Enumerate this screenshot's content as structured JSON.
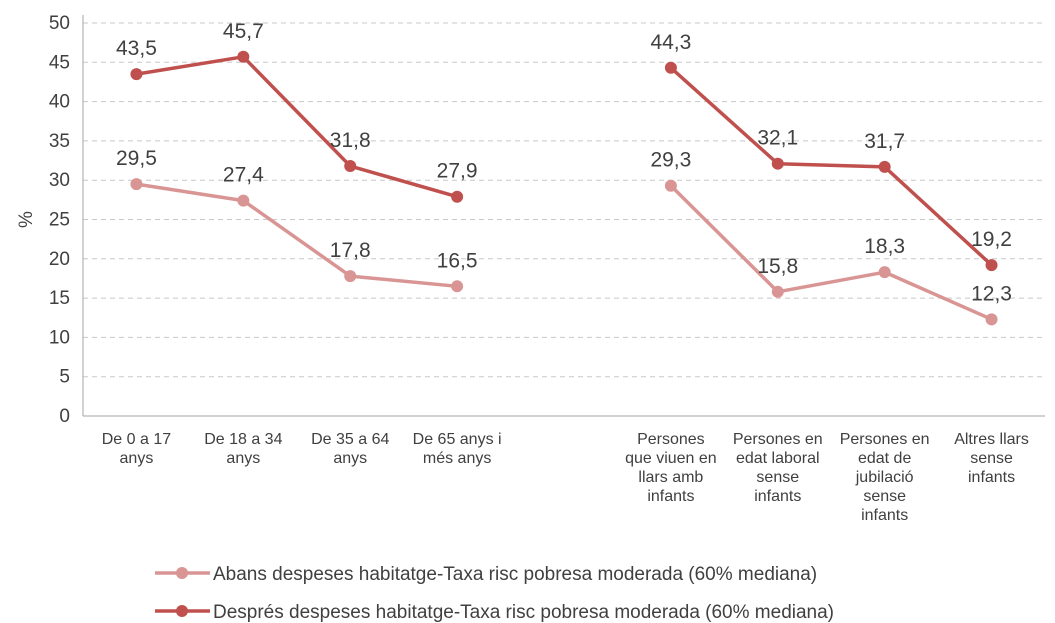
{
  "chart_data": {
    "type": "line",
    "ylabel": "%",
    "xlabel": "",
    "ylim": [
      0,
      50
    ],
    "yticks": [
      0,
      5,
      10,
      15,
      20,
      25,
      30,
      35,
      40,
      45,
      50
    ],
    "grid": "horizontal-dashed",
    "legend_position": "bottom",
    "categories": [
      {
        "label": [
          "De 0 a 17",
          "anys"
        ]
      },
      {
        "label": [
          "De 18 a 34",
          "anys"
        ]
      },
      {
        "label": [
          "De 35 a 64",
          "anys"
        ]
      },
      {
        "label": [
          "De 65 anys i",
          "més anys"
        ]
      },
      {
        "label": []
      },
      {
        "label": [
          "Persones",
          "que viuen en",
          "llars amb",
          "infants"
        ]
      },
      {
        "label": [
          "Persones en",
          "edat laboral",
          "sense",
          "infants"
        ]
      },
      {
        "label": [
          "Persones en",
          "edat de",
          "jubilació",
          "sense",
          "infants"
        ]
      },
      {
        "label": [
          "Altres llars",
          "sense",
          "infants"
        ]
      }
    ],
    "series": [
      {
        "name": "Abans despeses habitatge-Taxa risc pobresa moderada (60% mediana)",
        "color": "#d99594",
        "values": [
          29.5,
          27.4,
          17.8,
          16.5,
          null,
          29.3,
          15.8,
          18.3,
          12.3
        ]
      },
      {
        "name": "Després despeses habitatge-Taxa risc pobresa moderada (60% mediana)",
        "color": "#c0504d",
        "values": [
          43.5,
          45.7,
          31.8,
          27.9,
          null,
          44.3,
          32.1,
          31.7,
          19.2
        ]
      }
    ]
  }
}
